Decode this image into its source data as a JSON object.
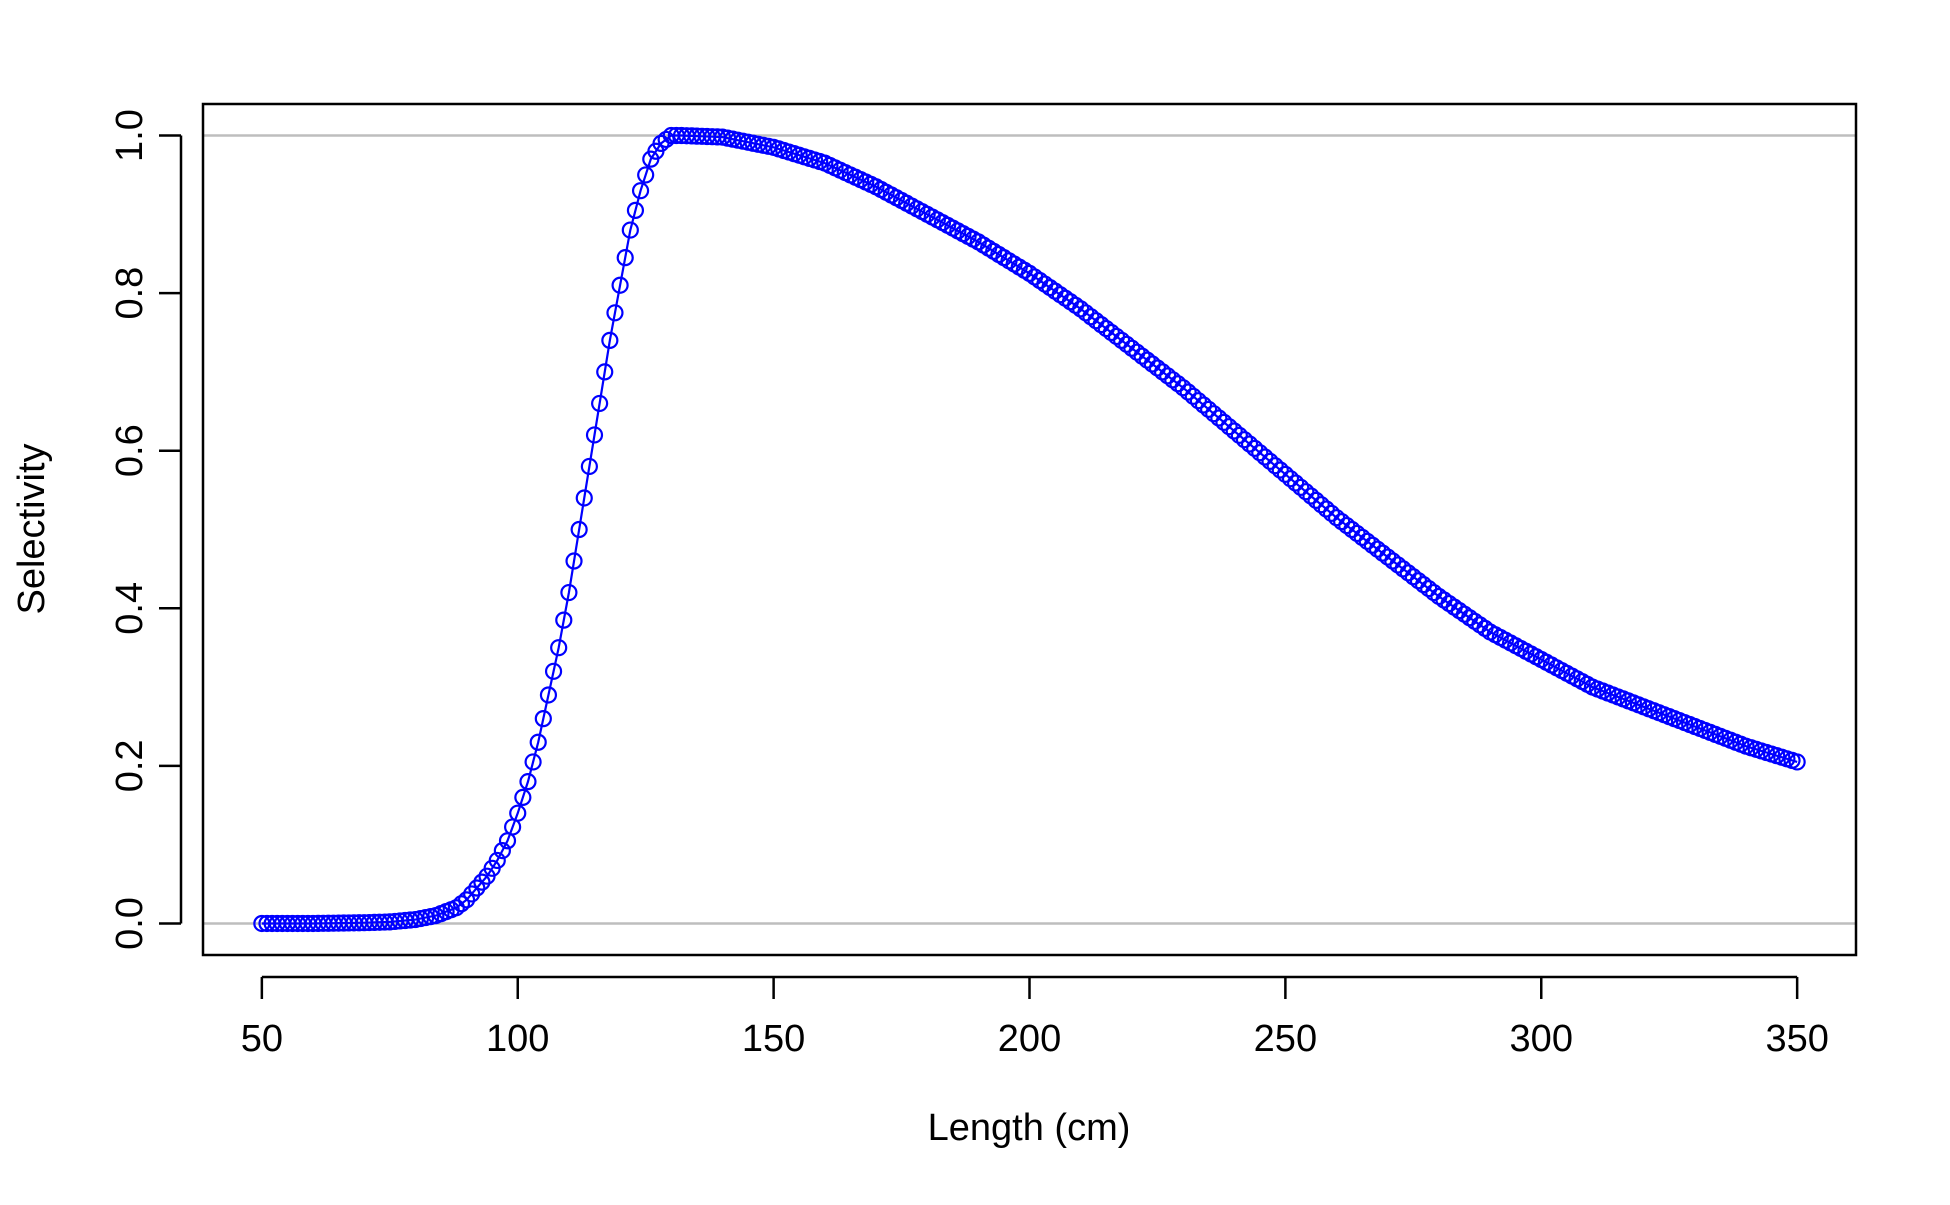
{
  "chart_data": {
    "type": "scatter",
    "title": "",
    "xlabel": "Length (cm)",
    "ylabel": "Selectivity",
    "xlim": [
      38.5,
      361.5
    ],
    "ylim": [
      -0.04,
      1.04
    ],
    "x_ticks": [
      "50",
      "100",
      "150",
      "200",
      "250",
      "300",
      "350"
    ],
    "x_tick_values": [
      50,
      100,
      150,
      200,
      250,
      300,
      350
    ],
    "y_ticks": [
      "0.0",
      "0.2",
      "0.4",
      "0.6",
      "0.8",
      "1.0"
    ],
    "y_tick_values": [
      0.0,
      0.2,
      0.4,
      0.6,
      0.8,
      1.0
    ],
    "reference_lines": [
      0,
      1
    ],
    "reference_line_color": "#BEBEBE",
    "series_color": "#0000FF",
    "marker": "open-circle",
    "connected_by_line": true,
    "grid": false,
    "legend": "none",
    "series": [
      {
        "x": [
          50,
          60,
          70,
          75,
          80,
          84,
          88,
          90,
          92,
          94,
          96,
          98,
          100,
          102,
          104,
          106,
          108,
          110,
          112,
          114,
          116,
          118,
          120,
          122,
          124,
          126,
          128,
          130,
          132,
          140,
          150,
          160,
          170,
          180,
          190,
          200,
          210,
          220,
          230,
          240,
          250,
          260,
          270,
          280,
          290,
          300,
          310,
          320,
          330,
          340,
          350
        ],
        "y": [
          0.0,
          0.0,
          0.001,
          0.002,
          0.005,
          0.01,
          0.02,
          0.03,
          0.045,
          0.06,
          0.08,
          0.105,
          0.14,
          0.18,
          0.23,
          0.29,
          0.35,
          0.42,
          0.5,
          0.58,
          0.66,
          0.74,
          0.81,
          0.88,
          0.93,
          0.97,
          0.99,
          1.0,
          1.0,
          0.998,
          0.985,
          0.965,
          0.935,
          0.9,
          0.865,
          0.825,
          0.78,
          0.73,
          0.68,
          0.625,
          0.57,
          0.515,
          0.465,
          0.415,
          0.37,
          0.335,
          0.3,
          0.275,
          0.25,
          0.225,
          0.205
        ]
      }
    ]
  }
}
